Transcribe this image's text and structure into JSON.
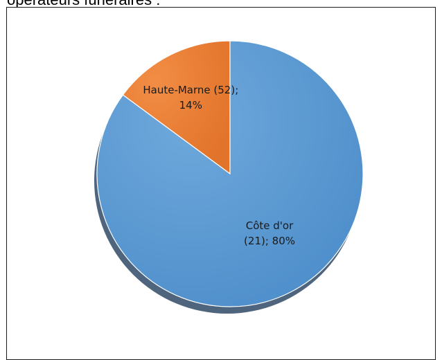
{
  "header": {
    "title_fragment": "opérateurs funéraires :"
  },
  "chart_data": {
    "type": "pie",
    "title": "",
    "start_angle_deg": 0,
    "direction": "counterclockwise",
    "slices": [
      {
        "label_line1": "Haute-Marne (52);",
        "label_line2": "14%",
        "category": "Haute-Marne (52)",
        "value": 14,
        "color": "#ED7D31"
      },
      {
        "label_line1": "Côte d'or",
        "label_line2": "(21); 80%",
        "category": "Côte d'or (21)",
        "value": 80,
        "color": "#5B9BD5"
      }
    ],
    "legend": "none",
    "shadow_color": "#2f4a66"
  }
}
